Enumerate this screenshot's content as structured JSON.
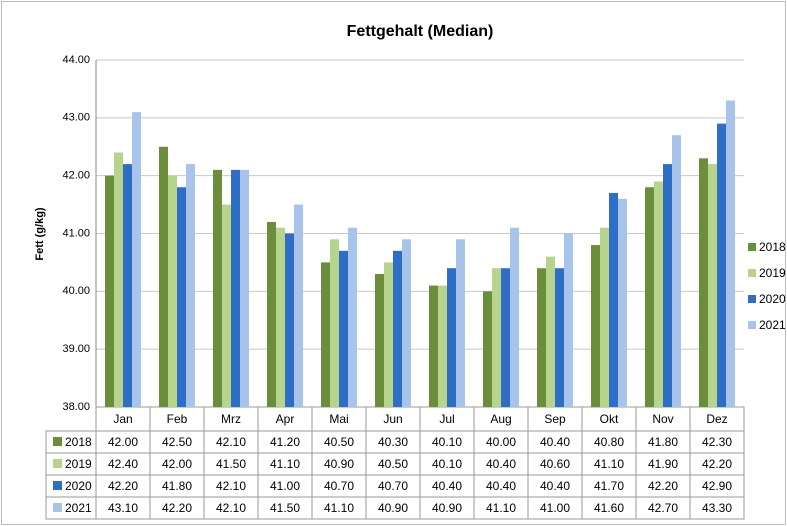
{
  "chart_data": {
    "type": "bar",
    "title": "Fettgehalt  (Median)",
    "y_label": "Fett (g/kg)",
    "categories": [
      "Jan",
      "Feb",
      "Mrz",
      "Apr",
      "Mai",
      "Jun",
      "Jul",
      "Aug",
      "Sep",
      "Okt",
      "Nov",
      "Dez"
    ],
    "series": [
      {
        "name": "2018",
        "color": "#6b8e3a",
        "values": [
          42.0,
          42.5,
          42.1,
          41.2,
          40.5,
          40.3,
          40.1,
          40.0,
          40.4,
          40.8,
          41.8,
          42.3
        ],
        "value_labels": [
          "42.00",
          "42.50",
          "42.10",
          "41.20",
          "40.50",
          "40.30",
          "40.10",
          "40.00",
          "40.40",
          "40.80",
          "41.80",
          "42.30"
        ]
      },
      {
        "name": "2019",
        "color": "#b6d48c",
        "values": [
          42.4,
          42.0,
          41.5,
          41.1,
          40.9,
          40.5,
          40.1,
          40.4,
          40.6,
          41.1,
          41.9,
          42.2
        ],
        "value_labels": [
          "42.40",
          "42.00",
          "41.50",
          "41.10",
          "40.90",
          "40.50",
          "40.10",
          "40.40",
          "40.60",
          "41.10",
          "41.90",
          "42.20"
        ]
      },
      {
        "name": "2020",
        "color": "#2f6ec6",
        "values": [
          42.2,
          41.8,
          42.1,
          41.0,
          40.7,
          40.7,
          40.4,
          40.4,
          40.4,
          41.7,
          42.2,
          42.9
        ],
        "value_labels": [
          "42.20",
          "41.80",
          "42.10",
          "41.00",
          "40.70",
          "40.70",
          "40.40",
          "40.40",
          "40.40",
          "41.70",
          "42.20",
          "42.90"
        ]
      },
      {
        "name": "2021",
        "color": "#a8c4eb",
        "values": [
          43.1,
          42.2,
          42.1,
          41.5,
          41.1,
          40.9,
          40.9,
          41.1,
          41.0,
          41.6,
          42.7,
          43.3
        ],
        "value_labels": [
          "43.10",
          "42.20",
          "42.10",
          "41.50",
          "41.10",
          "40.90",
          "40.90",
          "41.10",
          "41.00",
          "41.60",
          "42.70",
          "43.30"
        ]
      }
    ],
    "ylim": [
      38,
      44
    ],
    "yticks": [
      {
        "value": 38,
        "label": "38.00"
      },
      {
        "value": 39,
        "label": "39.00"
      },
      {
        "value": 40,
        "label": "40.00"
      },
      {
        "value": 41,
        "label": "41.00"
      },
      {
        "value": 42,
        "label": "42.00"
      },
      {
        "value": 43,
        "label": "43.00"
      },
      {
        "value": 44,
        "label": "44.00"
      }
    ],
    "grid": true,
    "legend": "right"
  }
}
